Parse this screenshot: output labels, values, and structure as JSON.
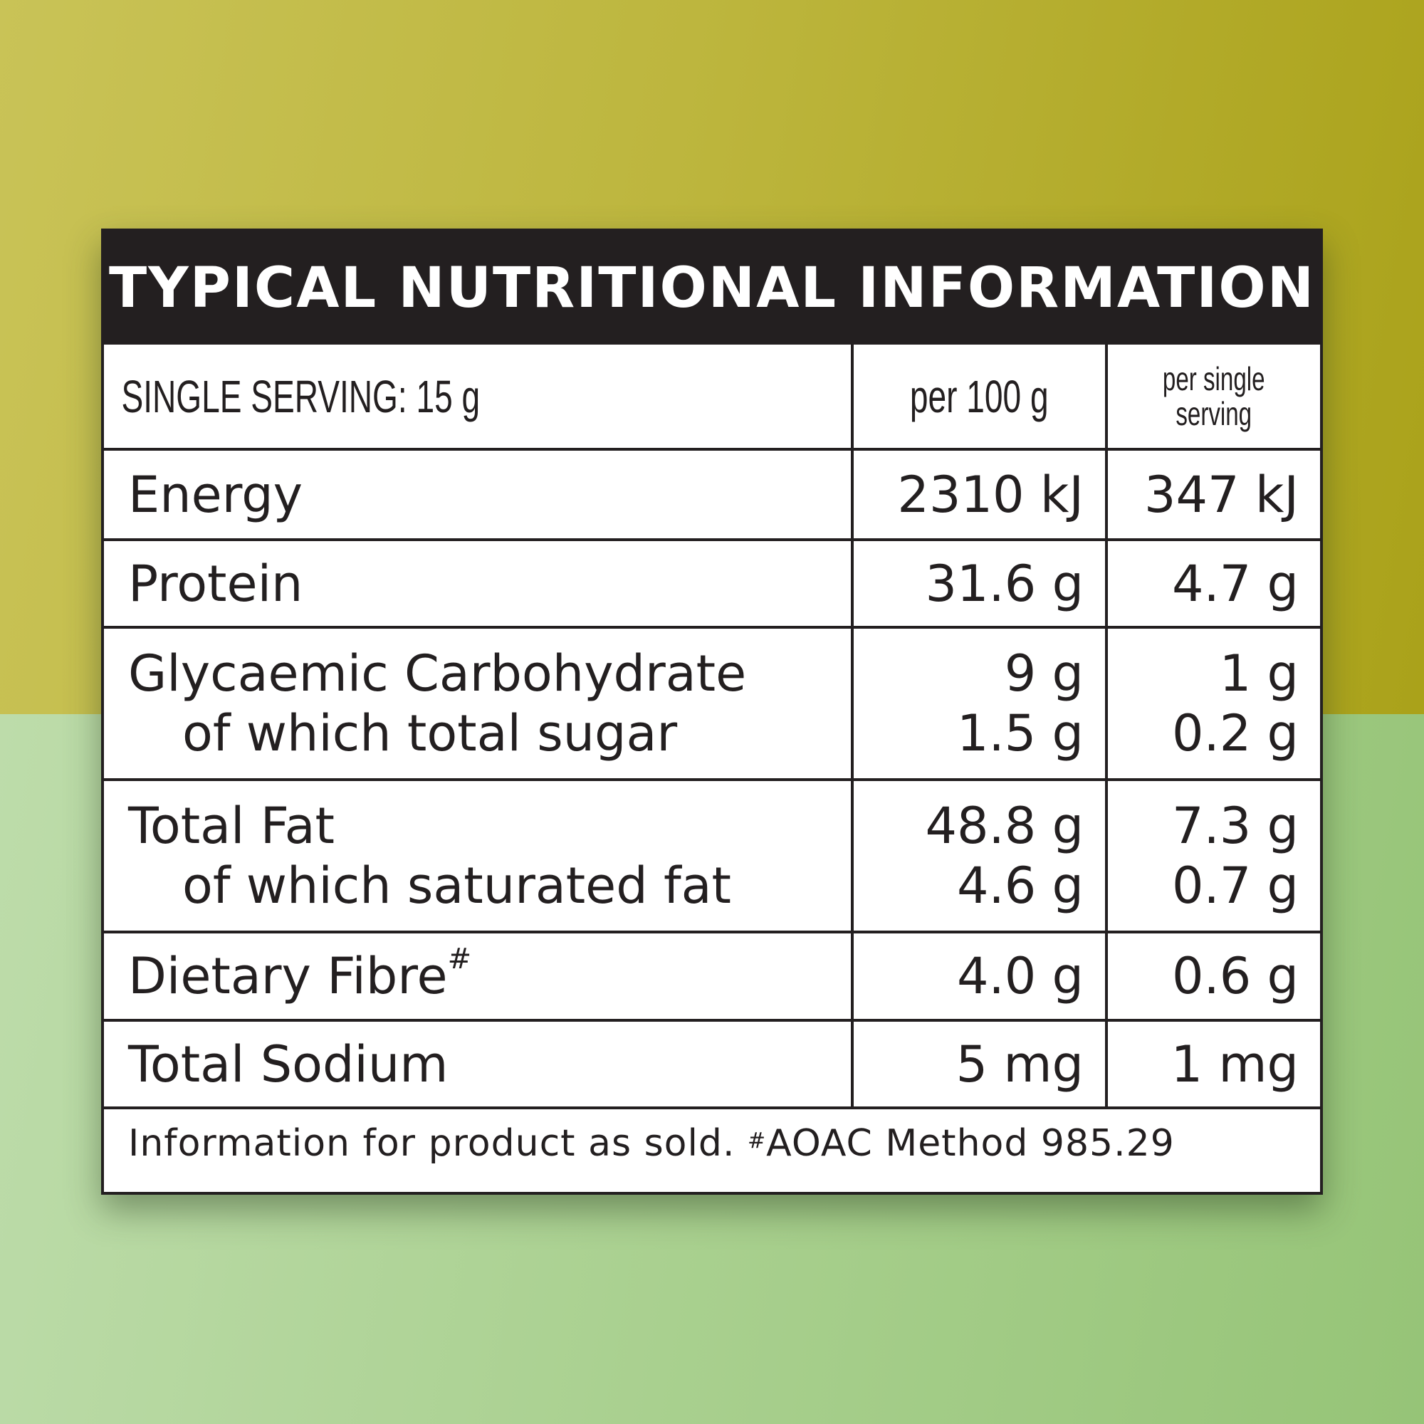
{
  "title": "TYPICAL NUTRITIONAL INFORMATION",
  "header": {
    "serving": "SINGLE SERVING: 15 g",
    "col1": "per 100 g",
    "col2_line1": "per single",
    "col2_line2": "serving"
  },
  "rows": [
    {
      "label": "Energy",
      "per100": "2310 kJ",
      "perServing": "347 kJ"
    },
    {
      "label": "Protein",
      "per100": "31.6 g",
      "perServing": "4.7 g"
    },
    {
      "label": "Glycaemic Carbohydrate",
      "per100": "9 g",
      "perServing": "1 g",
      "sub_label": "of which total sugar",
      "sub_per100": "1.5 g",
      "sub_perServing": "0.2 g"
    },
    {
      "label": "Total Fat",
      "per100": "48.8 g",
      "perServing": "7.3 g",
      "sub_label": "of which saturated fat",
      "sub_per100": "4.6 g",
      "sub_perServing": "0.7 g"
    },
    {
      "label": "Dietary Fibre",
      "mark": "#",
      "per100": "4.0 g",
      "perServing": "0.6 g"
    },
    {
      "label": "Total Sodium",
      "per100": "5 mg",
      "perServing": "1 mg"
    }
  ],
  "footer": {
    "text": "Information for product as sold. ",
    "mark": "#",
    "method": "AOAC Method 985.29"
  },
  "colors": {
    "dark": "#231f20",
    "bg_top": "#bdb63e",
    "bg_bottom": "#a9d08f"
  }
}
